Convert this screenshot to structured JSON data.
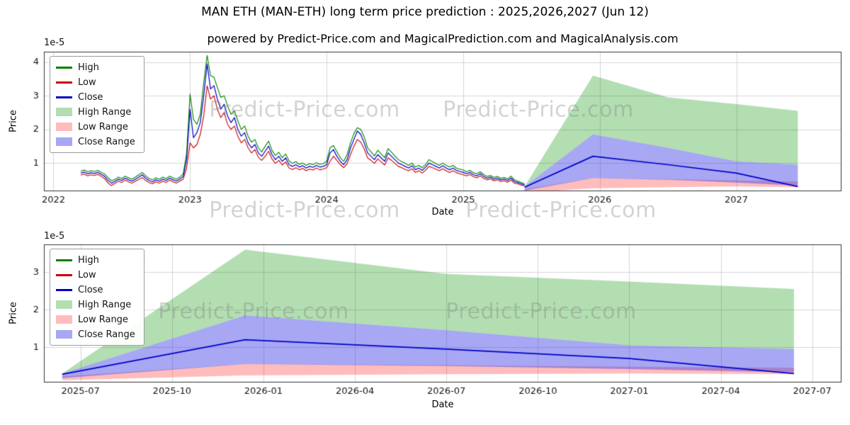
{
  "title": "MAN ETH (MAN-ETH) long term price prediction : 2025,2026,2027 (Jun 12)",
  "subtitle": "powered by Predict-Price.com and MagicalPrediction.com and MagicalAnalysis.com",
  "watermark": {
    "text": "Predict-Price.com"
  },
  "colors": {
    "high": "#008000",
    "low": "#cc0000",
    "close": "#0000c8",
    "high_range": "rgba(0,145,0,0.30)",
    "low_range": "rgba(255,64,64,0.35)",
    "close_range": "rgba(60,60,230,0.45)",
    "grid": "#d6d6d6",
    "spine": "#333333",
    "tick_text": "#141414"
  },
  "legend": {
    "position": "upper left",
    "items": [
      {
        "label": "High",
        "type": "line",
        "color": "#008000"
      },
      {
        "label": "Low",
        "type": "line",
        "color": "#cc0000"
      },
      {
        "label": "Close",
        "type": "line",
        "color": "#0000c8"
      },
      {
        "label": "High Range",
        "type": "patch",
        "color": "rgba(0,145,0,0.30)"
      },
      {
        "label": "Low Range",
        "type": "patch",
        "color": "rgba(255,64,64,0.35)"
      },
      {
        "label": "Close Range",
        "type": "patch",
        "color": "rgba(60,60,230,0.45)"
      }
    ]
  },
  "chart_data": [
    {
      "type": "line",
      "name": "historical-and-prediction",
      "xlabel": "Date",
      "ylabel": "Price",
      "scale_note": "1e-5",
      "grid": true,
      "xlim": [
        2021.93,
        2027.77
      ],
      "ylim": [
        0.16,
        4.31
      ],
      "xticks": {
        "values": [
          2022,
          2023,
          2024,
          2025,
          2026,
          2027
        ],
        "labels": [
          "2022",
          "2023",
          "2024",
          "2025",
          "2026",
          "2027"
        ]
      },
      "yticks": {
        "values": [
          1,
          2,
          3,
          4
        ],
        "labels": [
          "1",
          "2",
          "3",
          "4"
        ]
      },
      "series": {
        "historical": {
          "x_start": 2022.2,
          "x_step": 0.025,
          "count": 131,
          "close": [
            0.7,
            0.73,
            0.68,
            0.71,
            0.69,
            0.72,
            0.66,
            0.6,
            0.48,
            0.4,
            0.45,
            0.52,
            0.48,
            0.55,
            0.5,
            0.46,
            0.52,
            0.58,
            0.65,
            0.55,
            0.48,
            0.44,
            0.5,
            0.46,
            0.52,
            0.48,
            0.55,
            0.5,
            0.46,
            0.52,
            0.6,
            1.1,
            2.6,
            1.75,
            1.9,
            2.2,
            3.0,
            3.95,
            3.2,
            3.3,
            2.9,
            2.6,
            2.75,
            2.4,
            2.2,
            2.35,
            2.0,
            1.8,
            1.9,
            1.6,
            1.45,
            1.55,
            1.3,
            1.2,
            1.35,
            1.5,
            1.25,
            1.1,
            1.2,
            1.05,
            1.15,
            0.95,
            0.9,
            0.95,
            0.88,
            0.92,
            0.85,
            0.9,
            0.87,
            0.93,
            0.88,
            0.9,
            0.95,
            1.3,
            1.4,
            1.2,
            1.05,
            0.95,
            1.1,
            1.45,
            1.7,
            1.95,
            1.85,
            1.6,
            1.3,
            1.2,
            1.1,
            1.25,
            1.15,
            1.05,
            1.3,
            1.2,
            1.1,
            1.0,
            0.95,
            0.9,
            0.85,
            0.92,
            0.8,
            0.85,
            0.78,
            0.88,
            1.0,
            0.95,
            0.9,
            0.85,
            0.92,
            0.85,
            0.8,
            0.85,
            0.78,
            0.75,
            0.72,
            0.68,
            0.72,
            0.65,
            0.62,
            0.68,
            0.6,
            0.55,
            0.58,
            0.52,
            0.55,
            0.5,
            0.52,
            0.48,
            0.55,
            0.45,
            0.42,
            0.38,
            0.35
          ],
          "high": [
            0.76,
            0.79,
            0.74,
            0.77,
            0.75,
            0.78,
            0.72,
            0.67,
            0.56,
            0.47,
            0.51,
            0.58,
            0.54,
            0.61,
            0.56,
            0.52,
            0.58,
            0.65,
            0.72,
            0.62,
            0.54,
            0.5,
            0.56,
            0.52,
            0.58,
            0.54,
            0.61,
            0.56,
            0.52,
            0.58,
            0.68,
            1.3,
            3.05,
            2.3,
            2.15,
            2.45,
            3.4,
            4.2,
            3.6,
            3.55,
            3.25,
            2.95,
            3.0,
            2.7,
            2.45,
            2.55,
            2.25,
            2.0,
            2.1,
            1.8,
            1.62,
            1.7,
            1.45,
            1.33,
            1.5,
            1.65,
            1.38,
            1.22,
            1.32,
            1.16,
            1.27,
            1.06,
            0.99,
            1.04,
            0.96,
            1.0,
            0.93,
            0.98,
            0.95,
            1.01,
            0.96,
            0.98,
            1.05,
            1.45,
            1.52,
            1.34,
            1.16,
            1.05,
            1.25,
            1.6,
            1.88,
            2.05,
            2.0,
            1.78,
            1.45,
            1.33,
            1.21,
            1.38,
            1.27,
            1.16,
            1.43,
            1.32,
            1.21,
            1.1,
            1.04,
            0.99,
            0.93,
            1.0,
            0.88,
            0.93,
            0.86,
            0.96,
            1.1,
            1.04,
            0.98,
            0.93,
            1.0,
            0.93,
            0.88,
            0.93,
            0.85,
            0.82,
            0.79,
            0.74,
            0.78,
            0.71,
            0.68,
            0.74,
            0.66,
            0.6,
            0.63,
            0.57,
            0.6,
            0.55,
            0.57,
            0.53,
            0.61,
            0.5,
            0.46,
            0.42,
            0.38
          ],
          "low": [
            0.64,
            0.67,
            0.62,
            0.65,
            0.63,
            0.66,
            0.6,
            0.53,
            0.4,
            0.33,
            0.39,
            0.46,
            0.42,
            0.49,
            0.44,
            0.4,
            0.46,
            0.51,
            0.57,
            0.48,
            0.42,
            0.38,
            0.44,
            0.4,
            0.46,
            0.42,
            0.49,
            0.44,
            0.4,
            0.46,
            0.52,
            0.85,
            1.6,
            1.45,
            1.55,
            1.85,
            2.4,
            3.3,
            2.9,
            3.0,
            2.6,
            2.35,
            2.5,
            2.15,
            2.0,
            2.1,
            1.8,
            1.6,
            1.7,
            1.45,
            1.3,
            1.4,
            1.17,
            1.08,
            1.2,
            1.35,
            1.12,
            0.99,
            1.08,
            0.94,
            1.03,
            0.85,
            0.81,
            0.86,
            0.8,
            0.84,
            0.77,
            0.82,
            0.79,
            0.85,
            0.8,
            0.82,
            0.86,
            1.05,
            1.2,
            1.08,
            0.95,
            0.86,
            0.98,
            1.25,
            1.5,
            1.7,
            1.62,
            1.42,
            1.15,
            1.08,
            0.99,
            1.12,
            1.03,
            0.94,
            1.15,
            1.08,
            0.99,
            0.9,
            0.86,
            0.81,
            0.77,
            0.83,
            0.72,
            0.77,
            0.7,
            0.79,
            0.9,
            0.86,
            0.82,
            0.77,
            0.83,
            0.77,
            0.72,
            0.77,
            0.71,
            0.68,
            0.65,
            0.62,
            0.66,
            0.59,
            0.56,
            0.62,
            0.54,
            0.5,
            0.53,
            0.47,
            0.5,
            0.45,
            0.47,
            0.43,
            0.49,
            0.4,
            0.38,
            0.34,
            0.32
          ]
        },
        "prediction": {
          "x": [
            2025.45,
            2025.95,
            2026.5,
            2027.0,
            2027.45
          ],
          "close": [
            0.28,
            1.2,
            0.95,
            0.7,
            0.3
          ],
          "close_range_upper": [
            0.3,
            1.85,
            1.45,
            1.05,
            0.95
          ],
          "close_range_lower": [
            0.18,
            0.55,
            0.5,
            0.42,
            0.33
          ],
          "low_range_upper": [
            0.22,
            0.55,
            0.52,
            0.48,
            0.45
          ],
          "low_range_lower": [
            0.12,
            0.25,
            0.28,
            0.3,
            0.28
          ],
          "high_range_upper": [
            0.3,
            3.6,
            2.95,
            2.75,
            2.55
          ],
          "high_range_lower": [
            0.3,
            1.85,
            1.45,
            1.05,
            0.95
          ]
        }
      }
    },
    {
      "type": "line",
      "name": "prediction-detail",
      "xlabel": "Date",
      "ylabel": "Price",
      "scale_note": "1e-5",
      "grid": true,
      "xlim": [
        2025.4,
        2027.58
      ],
      "ylim": [
        0.06,
        3.74
      ],
      "xticks": {
        "values": [
          2025.5,
          2025.75,
          2026.0,
          2026.25,
          2026.5,
          2026.75,
          2027.0,
          2027.25,
          2027.5
        ],
        "labels": [
          "2025-07",
          "2025-10",
          "2026-01",
          "2026-04",
          "2026-07",
          "2026-10",
          "2027-01",
          "2027-04",
          "2027-07"
        ]
      },
      "yticks": {
        "values": [
          1,
          2,
          3
        ],
        "labels": [
          "1",
          "2",
          "3"
        ]
      },
      "series": {
        "prediction": {
          "x": [
            2025.45,
            2025.95,
            2026.5,
            2027.0,
            2027.45
          ],
          "close": [
            0.28,
            1.2,
            0.95,
            0.7,
            0.3
          ],
          "close_range_upper": [
            0.3,
            1.85,
            1.45,
            1.05,
            0.95
          ],
          "close_range_lower": [
            0.18,
            0.55,
            0.5,
            0.42,
            0.33
          ],
          "low_range_upper": [
            0.22,
            0.55,
            0.52,
            0.48,
            0.45
          ],
          "low_range_lower": [
            0.12,
            0.25,
            0.28,
            0.3,
            0.28
          ],
          "high_range_upper": [
            0.3,
            3.6,
            2.95,
            2.75,
            2.55
          ],
          "high_range_lower": [
            0.3,
            1.85,
            1.45,
            1.05,
            0.95
          ]
        }
      }
    }
  ]
}
